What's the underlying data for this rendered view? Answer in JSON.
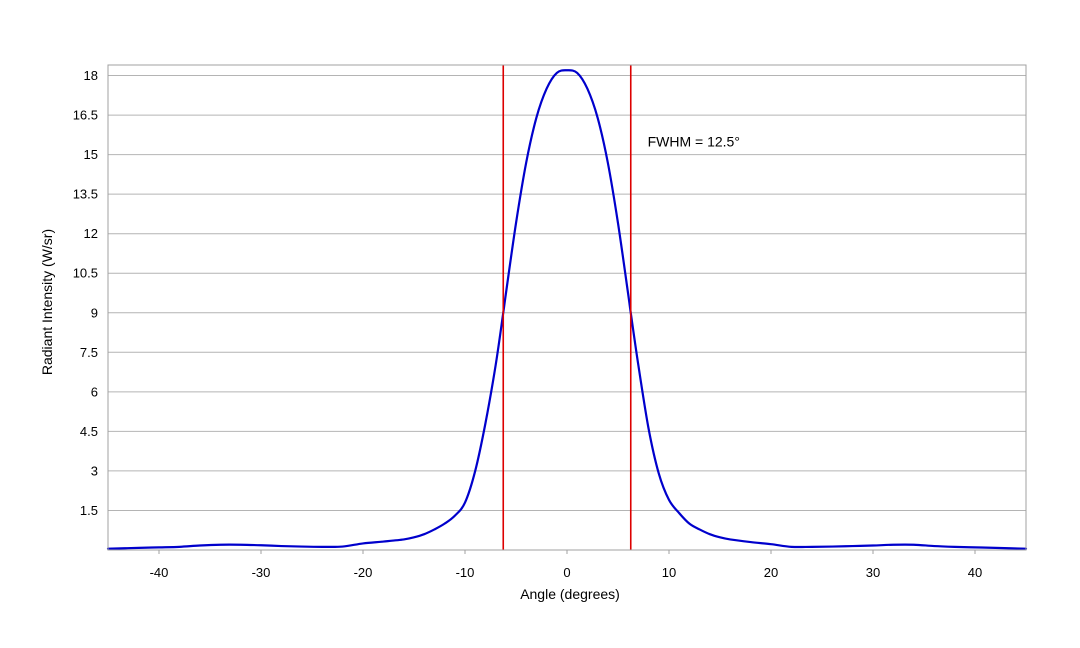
{
  "chart_data": {
    "type": "line",
    "title": "",
    "xlabel": "Angle (degrees)",
    "ylabel": "Radiant Intensity (W/sr)",
    "xlim": [
      -45,
      45
    ],
    "ylim": [
      0,
      18.4
    ],
    "grid": "horizontal",
    "x_ticks": [
      -40,
      -30,
      -20,
      -10,
      0,
      10,
      20,
      30,
      40
    ],
    "x_tick_labels": [
      "-40",
      "-30",
      "-20",
      "-10",
      "0",
      "10",
      "20",
      "30",
      "40"
    ],
    "y_ticks": [
      1.5,
      3,
      4.5,
      6,
      7.5,
      9,
      10.5,
      12,
      13.5,
      15,
      16.5,
      18
    ],
    "y_tick_labels": [
      "1.5",
      "3",
      "4.5",
      "6",
      "7.5",
      "9",
      "10.5",
      "12",
      "13.5",
      "15",
      "16.5",
      "18"
    ],
    "series": [
      {
        "color": "#0000cc",
        "x": [
          -45,
          -42,
          -40,
          -38,
          -36,
          -34,
          -32,
          -30,
          -28,
          -26,
          -24,
          -22,
          -20,
          -18,
          -16,
          -15,
          -14,
          -13,
          -12,
          -11,
          -10,
          -9,
          -8,
          -7,
          -6.25,
          -6,
          -5,
          -4,
          -3,
          -2,
          -1,
          0,
          1,
          2,
          3,
          4,
          5,
          6,
          6.25,
          7,
          8,
          9,
          10,
          11,
          12,
          13,
          14,
          15,
          16,
          18,
          20,
          22,
          24,
          26,
          28,
          30,
          32,
          34,
          36,
          38,
          40,
          42,
          45
        ],
        "y": [
          0.05,
          0.08,
          0.1,
          0.12,
          0.17,
          0.2,
          0.2,
          0.18,
          0.15,
          0.13,
          0.12,
          0.13,
          0.25,
          0.32,
          0.4,
          0.48,
          0.6,
          0.78,
          1.0,
          1.3,
          1.8,
          3.0,
          4.8,
          7.0,
          9.0,
          9.7,
          12.4,
          14.7,
          16.4,
          17.5,
          18.1,
          18.2,
          18.1,
          17.5,
          16.4,
          14.7,
          12.4,
          9.7,
          9.0,
          7.0,
          4.6,
          2.9,
          1.9,
          1.4,
          1.0,
          0.78,
          0.6,
          0.48,
          0.4,
          0.3,
          0.22,
          0.12,
          0.12,
          0.13,
          0.15,
          0.17,
          0.2,
          0.2,
          0.15,
          0.12,
          0.1,
          0.08,
          0.05
        ]
      }
    ],
    "fwhm_lines": {
      "x": [
        -6.25,
        6.25
      ],
      "color": "#dd0000"
    },
    "annotation": {
      "text": "FWHM = 12.5°",
      "x": 7.9,
      "y": 15.5
    },
    "plot_border_color": "#a0a0a0",
    "grid_color": "#b4b4b4"
  }
}
